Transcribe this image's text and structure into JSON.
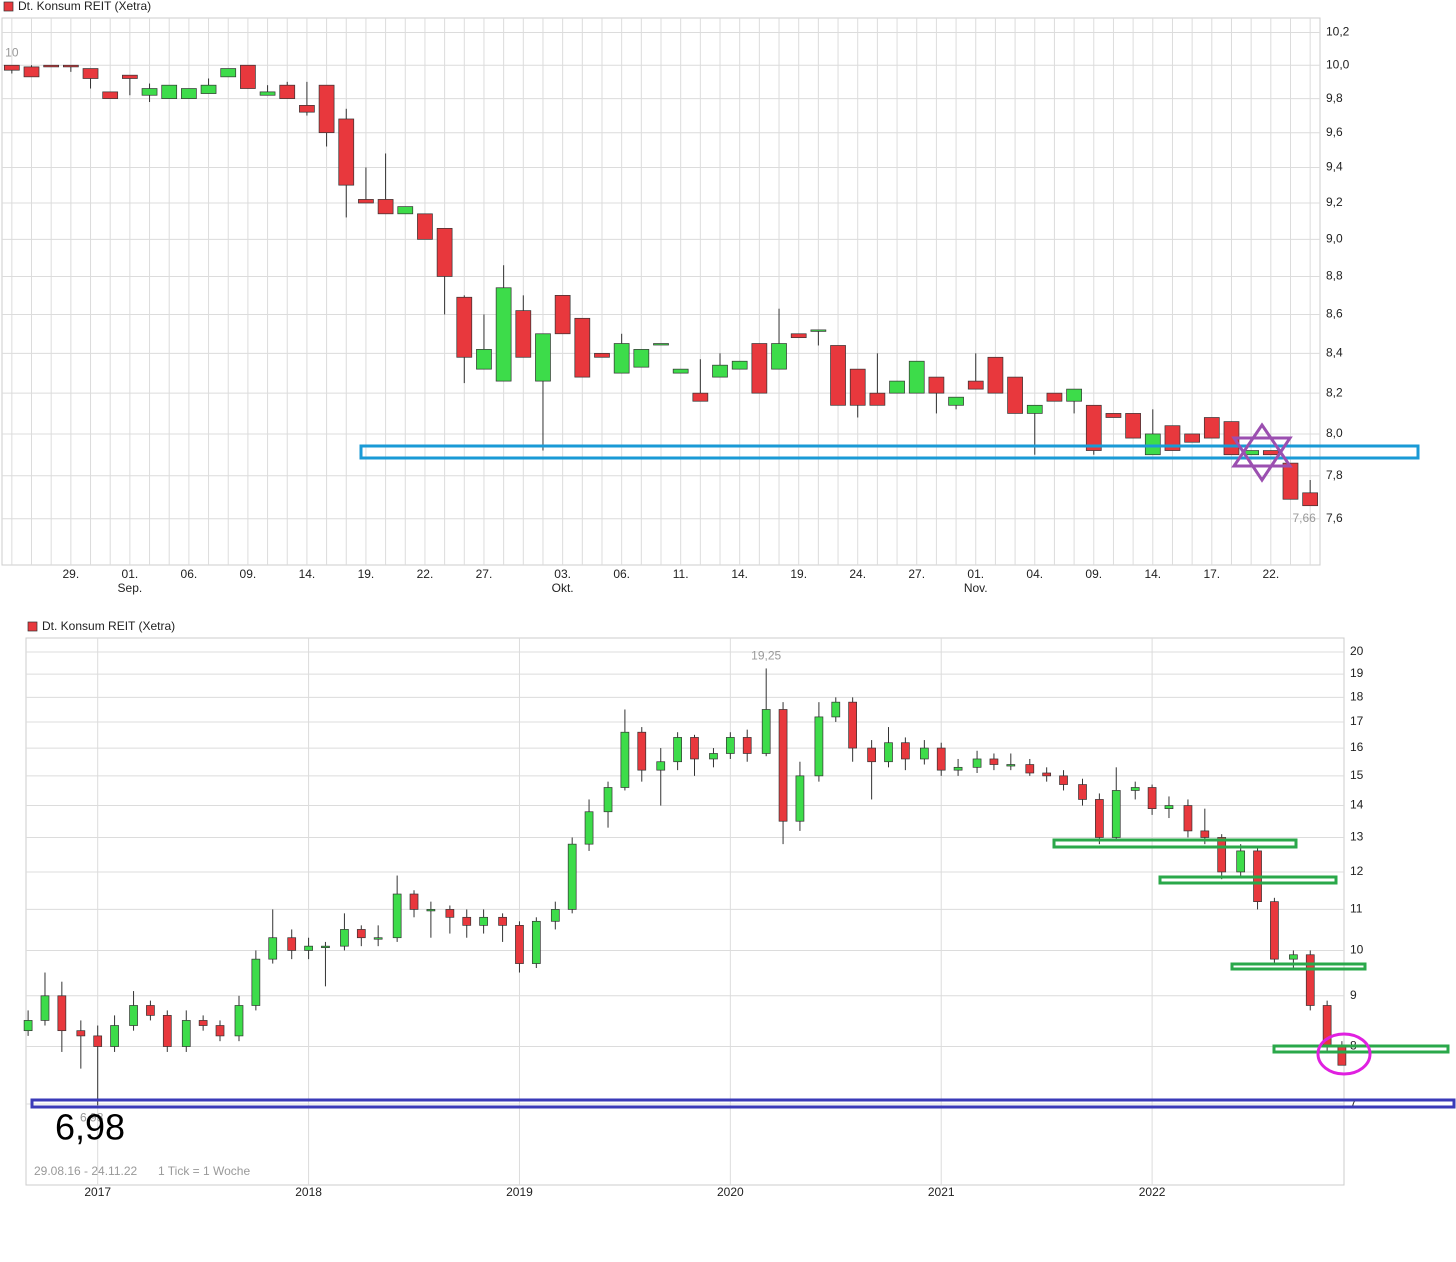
{
  "chart_data": [
    {
      "type": "candlestick",
      "title": "Dt. Konsum REIT (Xetra)",
      "categories": [
        null,
        null,
        null,
        "29.",
        null,
        null,
        "01.",
        null,
        null,
        "06.",
        null,
        null,
        "09.",
        null,
        null,
        "14.",
        null,
        null,
        "19.",
        null,
        null,
        "22.",
        null,
        null,
        "27.",
        null,
        null,
        null,
        "03.",
        null,
        null,
        "06.",
        null,
        null,
        "11.",
        null,
        null,
        "14.",
        null,
        null,
        "19.",
        null,
        null,
        "24.",
        null,
        null,
        "27.",
        null,
        null,
        "01.",
        null,
        null,
        "04.",
        null,
        null,
        "09.",
        null,
        null,
        "14.",
        null,
        null,
        "17.",
        null,
        null,
        "22.",
        null,
        null
      ],
      "month_labels": [
        null,
        null,
        null,
        null,
        null,
        null,
        "Sep.",
        null,
        null,
        null,
        null,
        null,
        null,
        null,
        null,
        null,
        null,
        null,
        null,
        null,
        null,
        null,
        null,
        null,
        null,
        null,
        null,
        null,
        "Okt.",
        null,
        null,
        null,
        null,
        null,
        null,
        null,
        null,
        null,
        null,
        null,
        null,
        null,
        null,
        null,
        null,
        null,
        null,
        null,
        null,
        "Nov.",
        null,
        null,
        null,
        null,
        null,
        null,
        null,
        null,
        null,
        null,
        null,
        null,
        null,
        null,
        null,
        null,
        null
      ],
      "open": [
        10.0,
        9.99,
        10.0,
        10.0,
        9.98,
        9.84,
        9.94,
        9.82,
        9.8,
        9.8,
        9.83,
        9.93,
        10.0,
        9.82,
        9.88,
        9.76,
        9.88,
        9.68,
        9.22,
        9.22,
        9.14,
        9.14,
        9.06,
        8.69,
        8.32,
        8.26,
        8.62,
        8.26,
        8.7,
        8.58,
        8.4,
        8.3,
        8.33,
        8.45,
        8.3,
        8.2,
        8.28,
        8.32,
        8.45,
        8.32,
        8.5,
        8.52,
        8.44,
        8.32,
        8.2,
        8.2,
        8.2,
        8.28,
        8.14,
        8.26,
        8.38,
        8.28,
        8.1,
        8.2,
        8.16,
        8.14,
        8.1,
        8.1,
        7.9,
        8.04,
        8.0,
        8.08,
        8.06,
        7.9,
        7.92,
        7.86,
        7.72
      ],
      "high": [
        10.0,
        10.0,
        10.0,
        10.0,
        9.98,
        9.84,
        9.94,
        9.89,
        9.88,
        9.86,
        9.92,
        9.98,
        10.0,
        9.88,
        9.9,
        9.9,
        9.88,
        9.74,
        9.4,
        9.48,
        9.18,
        9.14,
        9.06,
        8.7,
        8.6,
        8.86,
        8.7,
        8.5,
        8.7,
        8.58,
        8.4,
        8.5,
        8.42,
        8.45,
        8.32,
        8.37,
        8.4,
        8.36,
        8.45,
        8.63,
        8.5,
        8.52,
        8.44,
        8.32,
        8.4,
        8.26,
        8.36,
        8.28,
        8.18,
        8.4,
        8.38,
        8.28,
        8.14,
        8.2,
        8.22,
        8.14,
        8.1,
        8.1,
        8.12,
        8.04,
        8.0,
        8.08,
        8.06,
        7.92,
        7.92,
        7.86,
        7.78
      ],
      "low": [
        9.95,
        9.93,
        9.99,
        9.96,
        9.86,
        9.8,
        9.82,
        9.78,
        9.8,
        9.8,
        9.83,
        9.93,
        9.86,
        9.82,
        9.8,
        9.7,
        9.52,
        9.12,
        9.2,
        9.14,
        9.14,
        9.0,
        8.6,
        8.25,
        8.32,
        8.26,
        8.38,
        7.92,
        8.5,
        8.28,
        8.38,
        8.3,
        8.33,
        8.45,
        8.3,
        8.16,
        8.28,
        8.32,
        8.2,
        8.32,
        8.48,
        8.44,
        8.14,
        8.08,
        8.14,
        8.2,
        8.2,
        8.1,
        8.12,
        8.22,
        8.2,
        8.1,
        7.9,
        8.16,
        8.1,
        7.9,
        8.08,
        7.98,
        7.9,
        7.92,
        7.96,
        7.98,
        7.9,
        7.9,
        7.9,
        7.69,
        7.66
      ],
      "close": [
        9.97,
        9.93,
        9.99,
        9.99,
        9.92,
        9.8,
        9.92,
        9.86,
        9.88,
        9.86,
        9.88,
        9.98,
        9.86,
        9.84,
        9.8,
        9.72,
        9.6,
        9.3,
        9.2,
        9.14,
        9.18,
        9.0,
        8.8,
        8.38,
        8.42,
        8.74,
        8.38,
        8.5,
        8.5,
        8.28,
        8.38,
        8.45,
        8.42,
        8.45,
        8.32,
        8.16,
        8.34,
        8.36,
        8.2,
        8.45,
        8.48,
        8.52,
        8.14,
        8.14,
        8.14,
        8.26,
        8.36,
        8.2,
        8.18,
        8.22,
        8.2,
        8.1,
        8.14,
        8.16,
        8.22,
        7.92,
        8.08,
        7.98,
        8.0,
        7.92,
        7.96,
        7.98,
        7.9,
        7.92,
        7.9,
        7.69,
        7.66
      ],
      "up_color": "#3ddc4a",
      "down_color": "#e8383d",
      "log_scale": true,
      "grid": true,
      "ylim": [
        7.39,
        10.29
      ],
      "yticks": [
        {
          "value": 7.6,
          "label": "7,6"
        },
        {
          "value": 7.8,
          "label": "7,8"
        },
        {
          "value": 8.0,
          "label": "8,0"
        },
        {
          "value": 8.2,
          "label": "8,2"
        },
        {
          "value": 8.4,
          "label": "8,4"
        },
        {
          "value": 8.6,
          "label": "8,6"
        },
        {
          "value": 8.8,
          "label": "8,8"
        },
        {
          "value": 9.0,
          "label": "9,0"
        },
        {
          "value": 9.2,
          "label": "9,2"
        },
        {
          "value": 9.4,
          "label": "9,4"
        },
        {
          "value": 9.6,
          "label": "9,6"
        },
        {
          "value": 9.8,
          "label": "9,8"
        },
        {
          "value": 10.0,
          "label": "10,0"
        },
        {
          "value": 10.2,
          "label": "10,2"
        }
      ],
      "high_label": {
        "value": 10,
        "label": "10"
      },
      "low_label": {
        "value": 7.66,
        "label": "7,66"
      }
    },
    {
      "type": "candlestick",
      "title": "Dt. Konsum REIT (Xetra)",
      "x": [
        2016.67,
        2016.75,
        2016.83,
        2016.92,
        2017.0,
        2017.08,
        2017.17,
        2017.25,
        2017.33,
        2017.42,
        2017.5,
        2017.58,
        2017.67,
        2017.75,
        2017.83,
        2017.92,
        2018.0,
        2018.08,
        2018.17,
        2018.25,
        2018.33,
        2018.42,
        2018.5,
        2018.58,
        2018.67,
        2018.75,
        2018.83,
        2018.92,
        2019.0,
        2019.08,
        2019.17,
        2019.25,
        2019.33,
        2019.42,
        2019.5,
        2019.58,
        2019.67,
        2019.75,
        2019.83,
        2019.92,
        2020.0,
        2020.08,
        2020.17,
        2020.25,
        2020.33,
        2020.42,
        2020.5,
        2020.58,
        2020.67,
        2020.75,
        2020.83,
        2020.92,
        2021.0,
        2021.08,
        2021.17,
        2021.25,
        2021.33,
        2021.42,
        2021.5,
        2021.58,
        2021.67,
        2021.75,
        2021.83,
        2021.92,
        2022.0,
        2022.08,
        2022.17,
        2022.25,
        2022.33,
        2022.42,
        2022.5,
        2022.58,
        2022.67,
        2022.75,
        2022.83,
        2022.9
      ],
      "open": [
        8.3,
        8.5,
        9.0,
        8.3,
        8.2,
        8.0,
        8.4,
        8.8,
        8.6,
        8.0,
        8.5,
        8.4,
        8.2,
        8.8,
        9.8,
        10.3,
        10.0,
        10.1,
        10.1,
        10.5,
        10.3,
        10.3,
        11.4,
        11.0,
        11.0,
        10.8,
        10.6,
        10.8,
        10.6,
        9.7,
        10.7,
        11.0,
        12.8,
        13.8,
        14.6,
        16.6,
        15.2,
        15.5,
        16.4,
        15.6,
        15.8,
        16.4,
        15.8,
        17.5,
        13.5,
        15.0,
        17.2,
        17.8,
        16.0,
        15.5,
        16.2,
        15.6,
        16.0,
        15.2,
        15.3,
        15.6,
        15.4,
        15.4,
        15.1,
        15.0,
        14.7,
        14.2,
        13.0,
        14.5,
        14.6,
        13.9,
        14.0,
        13.2,
        13.0,
        12.0,
        12.6,
        11.2,
        9.8,
        9.9,
        8.8,
        8.0
      ],
      "high": [
        8.7,
        9.5,
        9.3,
        8.5,
        8.4,
        8.6,
        9.1,
        8.9,
        8.7,
        8.7,
        8.6,
        8.5,
        9.0,
        10.0,
        11.0,
        10.5,
        10.3,
        10.2,
        10.9,
        10.6,
        10.6,
        11.9,
        11.5,
        11.2,
        11.1,
        11.0,
        11.0,
        10.9,
        10.7,
        10.8,
        11.2,
        13.0,
        14.2,
        14.8,
        17.5,
        16.8,
        16.0,
        16.6,
        16.5,
        16.0,
        16.6,
        16.7,
        19.25,
        17.8,
        15.5,
        17.8,
        18.0,
        18.0,
        16.3,
        16.8,
        16.4,
        16.3,
        16.2,
        15.6,
        15.9,
        15.8,
        15.8,
        15.6,
        15.3,
        15.2,
        14.9,
        14.4,
        15.3,
        14.8,
        14.7,
        14.3,
        14.2,
        13.9,
        13.1,
        12.8,
        12.7,
        11.3,
        10.0,
        10.0,
        8.9,
        8.1
      ],
      "low": [
        8.2,
        8.4,
        7.9,
        7.6,
        6.98,
        7.9,
        8.3,
        8.5,
        7.9,
        7.9,
        8.3,
        8.1,
        8.1,
        8.7,
        9.7,
        9.8,
        9.8,
        9.2,
        10.0,
        10.1,
        10.1,
        10.2,
        10.8,
        10.3,
        10.4,
        10.3,
        10.4,
        10.2,
        9.5,
        9.6,
        10.5,
        10.9,
        12.6,
        13.3,
        14.5,
        14.8,
        14.0,
        15.2,
        15.0,
        15.3,
        15.6,
        15.5,
        15.7,
        12.8,
        13.2,
        14.8,
        17.0,
        15.5,
        14.2,
        15.3,
        15.2,
        15.4,
        15.0,
        15.0,
        15.1,
        15.2,
        15.2,
        15.0,
        14.8,
        14.5,
        14.0,
        12.8,
        12.9,
        14.2,
        13.7,
        13.6,
        13.0,
        12.8,
        11.8,
        11.9,
        11.0,
        9.7,
        9.6,
        8.7,
        7.9,
        7.66
      ],
      "close": [
        8.5,
        9.0,
        8.3,
        8.2,
        8.0,
        8.4,
        8.8,
        8.6,
        8.0,
        8.5,
        8.4,
        8.2,
        8.8,
        9.8,
        10.3,
        10.0,
        10.1,
        10.1,
        10.5,
        10.3,
        10.3,
        11.4,
        11.0,
        11.0,
        10.8,
        10.6,
        10.8,
        10.6,
        9.7,
        10.7,
        11.0,
        12.8,
        13.8,
        14.6,
        16.6,
        15.2,
        15.5,
        16.4,
        15.6,
        15.8,
        16.4,
        15.8,
        17.5,
        13.5,
        15.0,
        17.2,
        17.8,
        16.0,
        15.5,
        16.2,
        15.6,
        16.0,
        15.2,
        15.3,
        15.6,
        15.4,
        15.4,
        15.1,
        15.0,
        14.7,
        14.2,
        13.0,
        14.5,
        14.6,
        13.9,
        14.0,
        13.2,
        13.0,
        12.0,
        12.6,
        11.2,
        9.8,
        9.9,
        8.8,
        8.0,
        7.66
      ],
      "up_color": "#3ddc4a",
      "down_color": "#e8383d",
      "log_scale": true,
      "grid": true,
      "xlim": [
        2016.66,
        2022.91
      ],
      "xticks": [
        2017,
        2018,
        2019,
        2020,
        2021,
        2022
      ],
      "ylim": [
        5.8,
        20.66
      ],
      "yticks": [
        7,
        8,
        9,
        10,
        11,
        12,
        13,
        14,
        15,
        16,
        17,
        18,
        19,
        20
      ],
      "high_label": {
        "value": 19.25,
        "label": "19,25"
      },
      "low_label": {
        "value": 6.98,
        "label": "6,98"
      },
      "annotation": "6,98",
      "footer_range": "29.08.16 - 24.11.22",
      "footer_tick": "1 Tick = 1 Woche"
    }
  ]
}
